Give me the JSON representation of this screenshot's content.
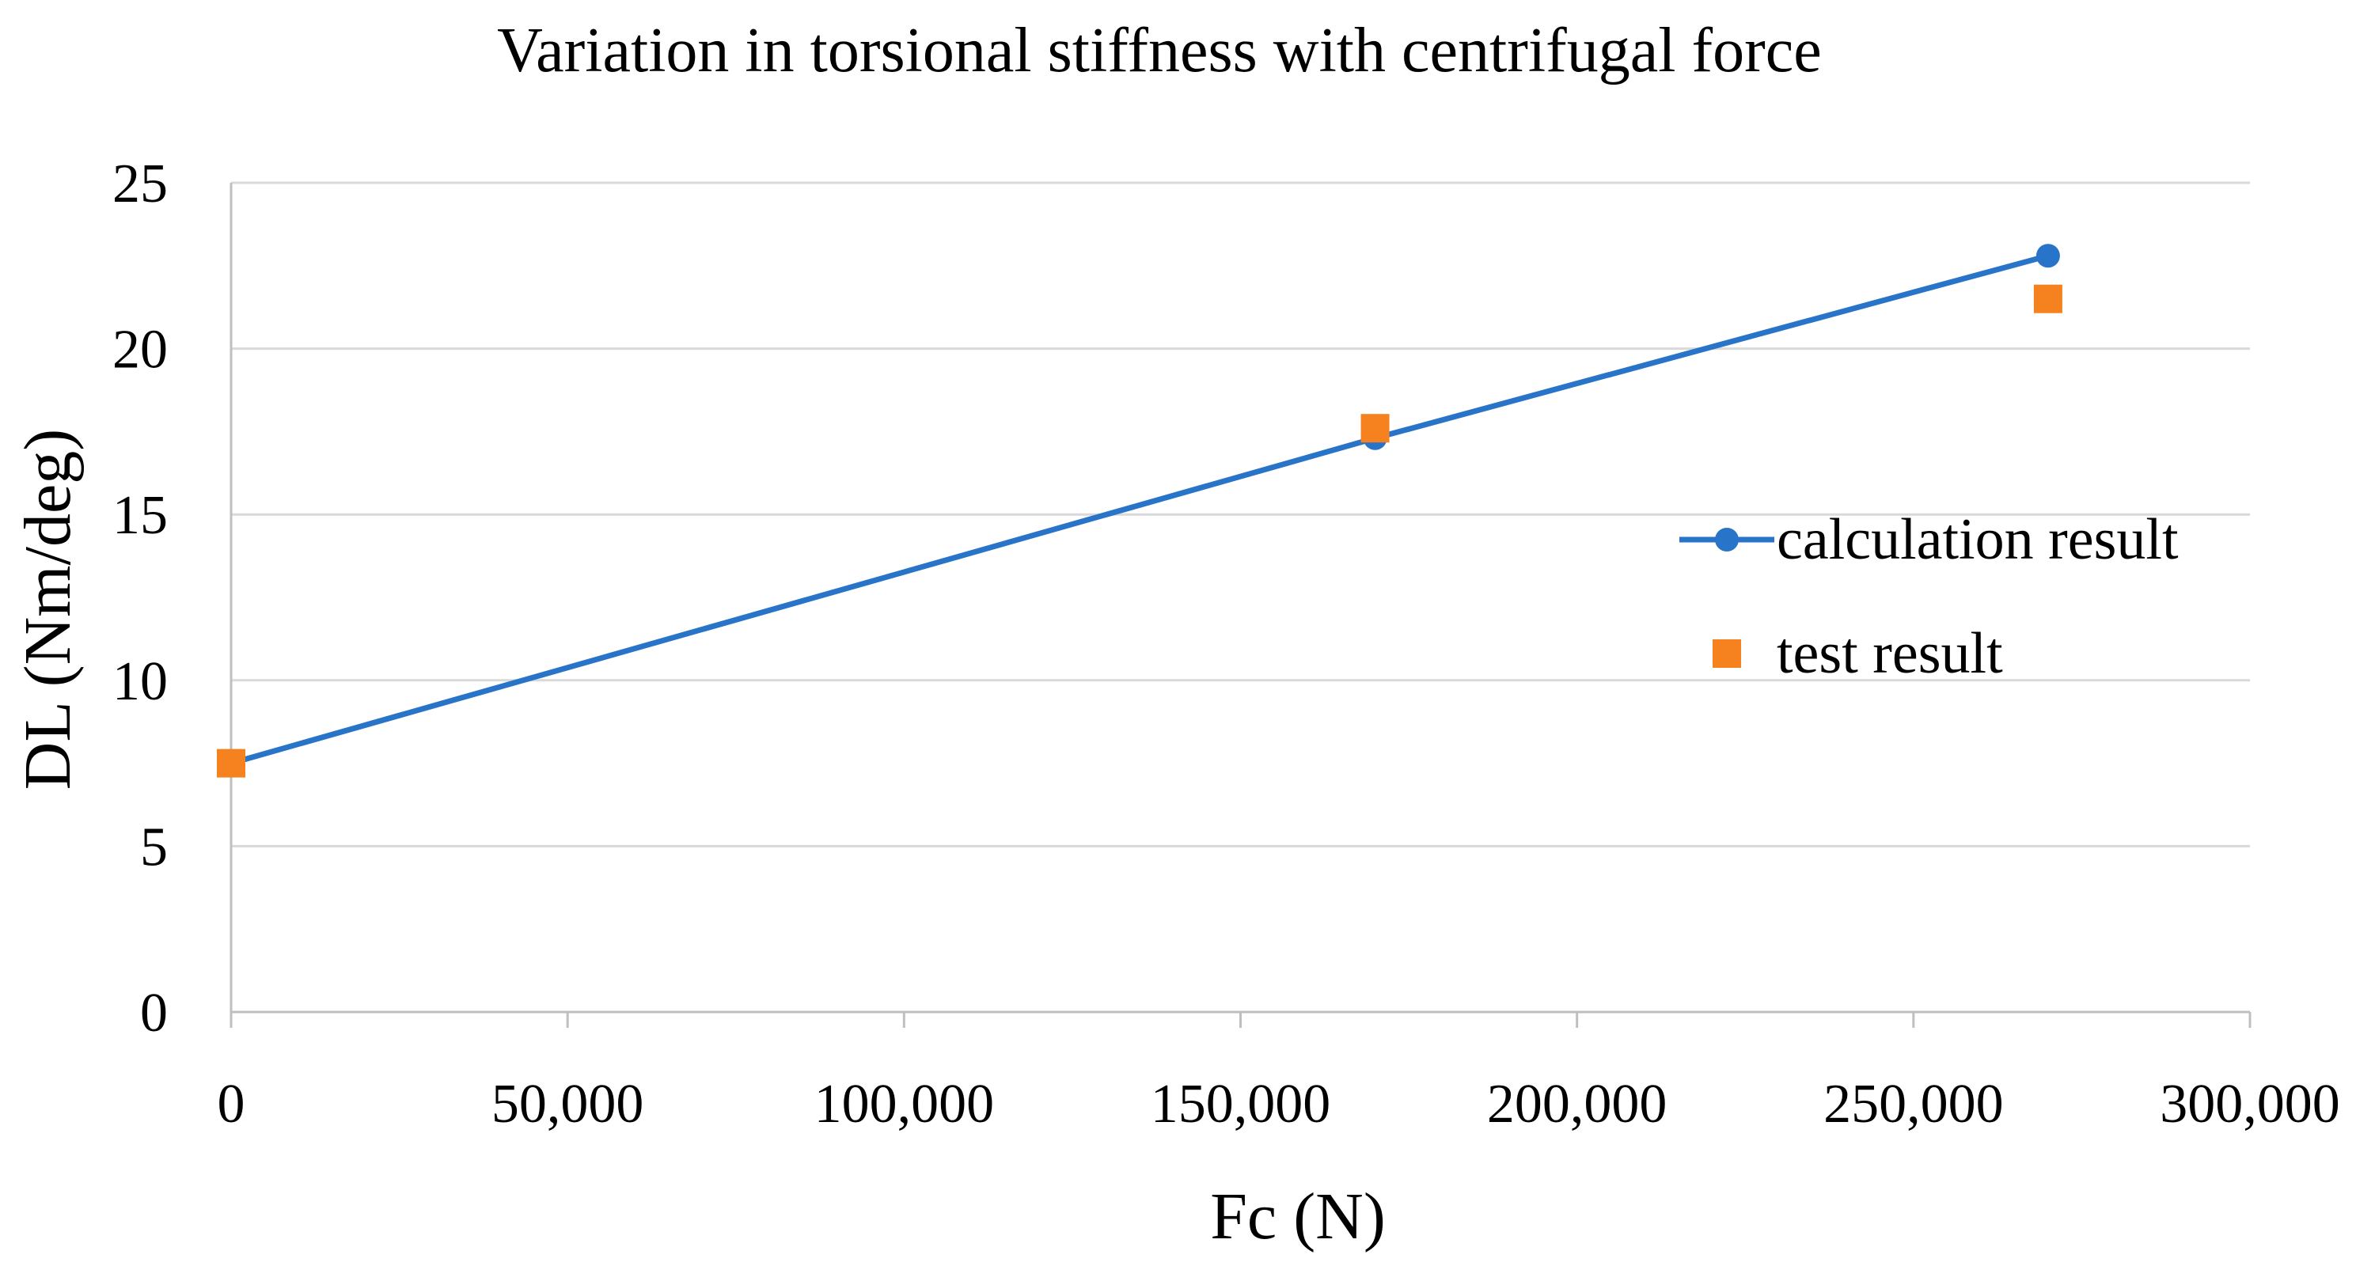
{
  "chart_data": {
    "type": "line",
    "title": "Variation in torsional stiffness with centrifugal force",
    "xlabel": "Fc (N)",
    "ylabel": "DL (Nm/deg)",
    "xlim": [
      0,
      300000
    ],
    "ylim": [
      0,
      25
    ],
    "x_ticks": [
      0,
      50000,
      100000,
      150000,
      200000,
      250000,
      300000
    ],
    "x_tick_labels": [
      "0",
      "50,000",
      "100,000",
      "150,000",
      "200,000",
      "250,000",
      "300,000"
    ],
    "y_ticks": [
      0,
      5,
      10,
      15,
      20,
      25
    ],
    "y_tick_labels": [
      "0",
      "5",
      "10",
      "15",
      "20",
      "25"
    ],
    "grid": "horizontal",
    "legend_position": "right",
    "series": [
      {
        "name": "calculation result",
        "style": "line-circle",
        "color": "#2874C8",
        "x": [
          0,
          170000,
          270000
        ],
        "y": [
          7.5,
          17.3,
          22.8
        ]
      },
      {
        "name": "test result",
        "style": "square-marker",
        "color": "#F5821F",
        "x": [
          0,
          170000,
          270000
        ],
        "y": [
          7.5,
          17.6,
          21.5
        ]
      }
    ]
  },
  "colors": {
    "grid": "#D9D9D9",
    "axis": "#BFBFBF",
    "text": "#000000"
  }
}
